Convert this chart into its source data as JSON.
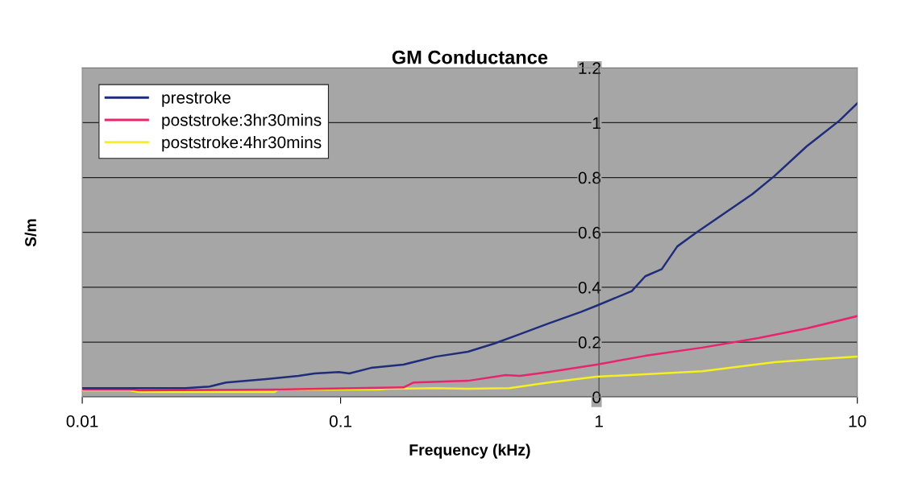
{
  "chart_data": {
    "type": "line",
    "title": "GM Conductance",
    "xlabel": "Frequency (kHz)",
    "ylabel": "S/m",
    "log": "x",
    "xlim": [
      0.01,
      10
    ],
    "xticks": [
      0.01,
      0.1,
      1,
      10
    ],
    "ylim": [
      0,
      1.2
    ],
    "yticks": [
      0,
      0.2,
      0.4,
      0.6,
      0.8,
      1,
      1.2
    ],
    "grid": "y",
    "legend": "top left",
    "marker": "none",
    "line_style": "solid",
    "series": [
      {
        "name": "prestroke",
        "color": "#1f2d7a",
        "x": [
          0.01,
          0.0141,
          0.0251,
          0.0311,
          0.036,
          0.0515,
          0.0687,
          0.0793,
          0.0984,
          0.108,
          0.131,
          0.175,
          0.233,
          0.311,
          0.394,
          0.478,
          0.638,
          0.85,
          0.98,
          1.34,
          1.51,
          1.75,
          2.01,
          2.38,
          3.93,
          4.77,
          6.37,
          8.49,
          10
        ],
        "values": [
          0.032,
          0.032,
          0.032,
          0.038,
          0.053,
          0.065,
          0.077,
          0.086,
          0.091,
          0.086,
          0.106,
          0.118,
          0.147,
          0.165,
          0.195,
          0.224,
          0.268,
          0.31,
          0.333,
          0.386,
          0.44,
          0.466,
          0.549,
          0.599,
          0.74,
          0.805,
          0.914,
          1.006,
          1.071
        ]
      },
      {
        "name": "poststroke:3hr30mins",
        "color": "#e8246e",
        "x": [
          0.01,
          0.0157,
          0.0166,
          0.0553,
          0.114,
          0.175,
          0.192,
          0.311,
          0.435,
          0.494,
          0.638,
          0.98,
          1.51,
          2.51,
          4.14,
          6.37,
          10
        ],
        "values": [
          0.027,
          0.027,
          0.024,
          0.027,
          0.032,
          0.035,
          0.053,
          0.059,
          0.08,
          0.077,
          0.091,
          0.118,
          0.15,
          0.18,
          0.215,
          0.25,
          0.295
        ]
      },
      {
        "name": "poststroke:4hr30mins",
        "color": "#f5f020",
        "x": [
          0.01,
          0.0152,
          0.0166,
          0.0553,
          0.0574,
          0.141,
          0.152,
          0.233,
          0.311,
          0.45,
          0.638,
          0.98,
          2.51,
          4.77,
          6.37,
          10
        ],
        "values": [
          0.024,
          0.024,
          0.018,
          0.018,
          0.027,
          0.027,
          0.03,
          0.032,
          0.03,
          0.032,
          0.053,
          0.074,
          0.094,
          0.127,
          0.136,
          0.147
        ]
      }
    ]
  }
}
